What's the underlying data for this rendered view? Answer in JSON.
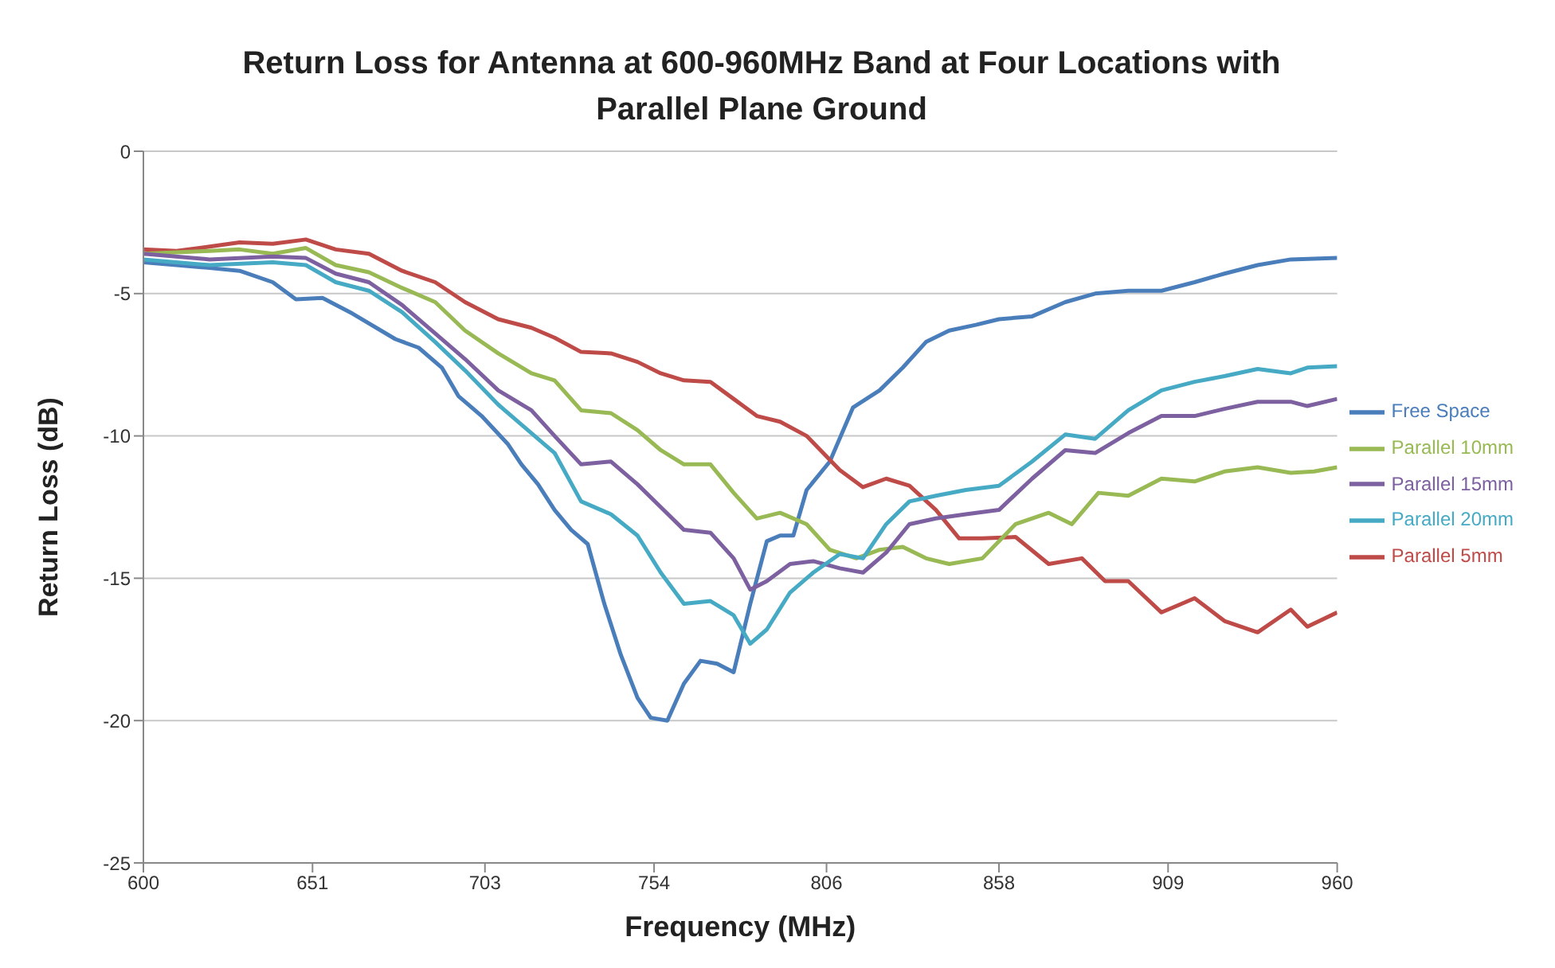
{
  "chart_data": {
    "type": "line",
    "title": "Return Loss for Antenna at 600-960MHz Band at Four Locations with Parallel Plane Ground",
    "xlabel": "Frequency  (MHz)",
    "ylabel": "Return Loss (dB)",
    "xlim": [
      600,
      960
    ],
    "xticks": [
      600,
      651,
      703,
      754,
      806,
      858,
      909,
      960
    ],
    "ylim": [
      -25,
      0
    ],
    "yticks": [
      -25,
      -20,
      -15,
      -10,
      -5,
      0
    ],
    "grid": "y",
    "legend": "right",
    "marker": "none",
    "line_style": "solid",
    "series": [
      {
        "name": "Free Space",
        "color": "#4a7ebb",
        "x": [
          600,
          610,
          620,
          629,
          639,
          646,
          654,
          663,
          676,
          683,
          690,
          695,
          702,
          710,
          714,
          719,
          724,
          729,
          734,
          739,
          744,
          749,
          753,
          758,
          763,
          768,
          773,
          778,
          783,
          788,
          792,
          796,
          800,
          807,
          814,
          822,
          829,
          836,
          843,
          851,
          858,
          868,
          878,
          887,
          897,
          907,
          917,
          926,
          936,
          946,
          960
        ],
        "values": [
          -3.9,
          -4.0,
          -4.1,
          -4.2,
          -4.6,
          -5.2,
          -5.15,
          -5.7,
          -6.6,
          -6.9,
          -7.6,
          -8.6,
          -9.3,
          -10.3,
          -11.0,
          -11.7,
          -12.6,
          -13.3,
          -13.8,
          -15.9,
          -17.7,
          -19.2,
          -19.9,
          -20.0,
          -18.7,
          -17.9,
          -18.0,
          -18.3,
          -15.9,
          -13.7,
          -13.5,
          -13.5,
          -11.9,
          -10.9,
          -9.0,
          -8.4,
          -7.6,
          -6.7,
          -6.3,
          -6.1,
          -5.9,
          -5.8,
          -5.3,
          -5.0,
          -4.9,
          -4.9,
          -4.6,
          -4.3,
          -4.0,
          -3.8,
          -3.75
        ]
      },
      {
        "name": "Parallel 5mm",
        "color": "#be4b48",
        "x": [
          600,
          610,
          620,
          629,
          639,
          649,
          658,
          668,
          678,
          688,
          697,
          707,
          717,
          724,
          732,
          741,
          749,
          756,
          763,
          771,
          778,
          785,
          792,
          800,
          810,
          817,
          824,
          831,
          839,
          846,
          853,
          863,
          873,
          883,
          890,
          897,
          907,
          917,
          926,
          936,
          946,
          951,
          960
        ],
        "values": [
          -3.45,
          -3.5,
          -3.35,
          -3.2,
          -3.25,
          -3.1,
          -3.45,
          -3.6,
          -4.2,
          -4.6,
          -5.3,
          -5.9,
          -6.2,
          -6.55,
          -7.05,
          -7.1,
          -7.4,
          -7.8,
          -8.05,
          -8.1,
          -8.7,
          -9.3,
          -9.5,
          -10.0,
          -11.2,
          -11.8,
          -11.5,
          -11.75,
          -12.6,
          -13.6,
          -13.6,
          -13.55,
          -14.5,
          -14.3,
          -15.1,
          -15.1,
          -16.2,
          -15.7,
          -16.5,
          -16.9,
          -16.1,
          -16.7,
          -16.2
        ]
      },
      {
        "name": "Parallel 10mm",
        "color": "#98b954",
        "x": [
          600,
          620,
          629,
          639,
          649,
          658,
          668,
          678,
          688,
          697,
          707,
          717,
          724,
          732,
          741,
          749,
          756,
          763,
          771,
          778,
          785,
          792,
          800,
          807,
          815,
          822,
          829,
          836,
          843,
          853,
          863,
          873,
          880,
          888,
          897,
          907,
          917,
          926,
          936,
          946,
          953,
          960
        ],
        "values": [
          -3.6,
          -3.5,
          -3.45,
          -3.6,
          -3.4,
          -4.0,
          -4.25,
          -4.8,
          -5.3,
          -6.3,
          -7.1,
          -7.8,
          -8.05,
          -9.1,
          -9.2,
          -9.8,
          -10.5,
          -11.0,
          -11.0,
          -12.0,
          -12.9,
          -12.7,
          -13.1,
          -14.0,
          -14.3,
          -14.0,
          -13.9,
          -14.3,
          -14.5,
          -14.3,
          -13.1,
          -12.7,
          -13.1,
          -12.0,
          -12.1,
          -11.5,
          -11.6,
          -11.25,
          -11.1,
          -11.3,
          -11.25,
          -11.1
        ]
      },
      {
        "name": "Parallel 15mm",
        "color": "#7d60a0",
        "x": [
          600,
          620,
          639,
          649,
          658,
          668,
          678,
          688,
          697,
          707,
          717,
          724,
          732,
          741,
          749,
          756,
          763,
          771,
          778,
          783,
          788,
          795,
          802,
          810,
          817,
          824,
          831,
          839,
          848,
          858,
          868,
          878,
          887,
          897,
          907,
          917,
          926,
          936,
          946,
          951,
          960
        ],
        "values": [
          -3.6,
          -3.8,
          -3.7,
          -3.75,
          -4.3,
          -4.6,
          -5.4,
          -6.4,
          -7.3,
          -8.4,
          -9.1,
          -10.0,
          -11.0,
          -10.9,
          -11.7,
          -12.5,
          -13.3,
          -13.4,
          -14.3,
          -15.4,
          -15.1,
          -14.5,
          -14.4,
          -14.65,
          -14.8,
          -14.1,
          -13.1,
          -12.9,
          -12.75,
          -12.6,
          -11.5,
          -10.5,
          -10.6,
          -9.9,
          -9.3,
          -9.3,
          -9.05,
          -8.8,
          -8.8,
          -8.95,
          -8.7
        ]
      },
      {
        "name": "Parallel 20mm",
        "color": "#46aac5",
        "x": [
          600,
          620,
          639,
          649,
          658,
          668,
          678,
          688,
          697,
          707,
          717,
          724,
          732,
          741,
          749,
          756,
          763,
          771,
          778,
          783,
          788,
          795,
          802,
          810,
          817,
          824,
          831,
          839,
          848,
          858,
          868,
          878,
          887,
          897,
          907,
          917,
          926,
          936,
          946,
          951,
          960
        ],
        "values": [
          -3.8,
          -4.0,
          -3.9,
          -4.0,
          -4.6,
          -4.9,
          -5.65,
          -6.7,
          -7.7,
          -8.9,
          -9.9,
          -10.6,
          -12.3,
          -12.75,
          -13.5,
          -14.8,
          -15.9,
          -15.8,
          -16.3,
          -17.3,
          -16.8,
          -15.5,
          -14.8,
          -14.15,
          -14.3,
          -13.1,
          -12.3,
          -12.1,
          -11.9,
          -11.75,
          -10.9,
          -9.95,
          -10.1,
          -9.1,
          -8.4,
          -8.1,
          -7.9,
          -7.65,
          -7.8,
          -7.6,
          -7.55
        ]
      }
    ]
  }
}
